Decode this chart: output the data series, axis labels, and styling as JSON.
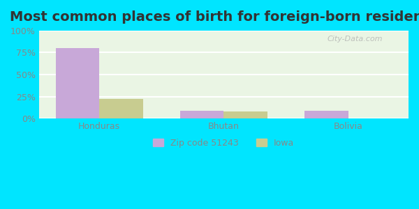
{
  "title": "Most common places of birth for foreign-born residents",
  "categories": [
    "Honduras",
    "Bhutan",
    "Bolivia"
  ],
  "zip_values": [
    80,
    9,
    9
  ],
  "iowa_values": [
    22,
    8,
    0.5
  ],
  "zip_color": "#c8a8d8",
  "iowa_color": "#c8cc90",
  "bar_width": 0.35,
  "yticks": [
    0,
    25,
    50,
    75,
    100
  ],
  "ytick_labels": [
    "0%",
    "25%",
    "50%",
    "75%",
    "100%"
  ],
  "legend_zip": "Zip code 51243",
  "legend_iowa": "Iowa",
  "bg_outer": "#00e5ff",
  "bg_inner": "#eaf5e4",
  "grid_color": "#ffffff",
  "title_fontsize": 14,
  "tick_fontsize": 9,
  "legend_fontsize": 9
}
